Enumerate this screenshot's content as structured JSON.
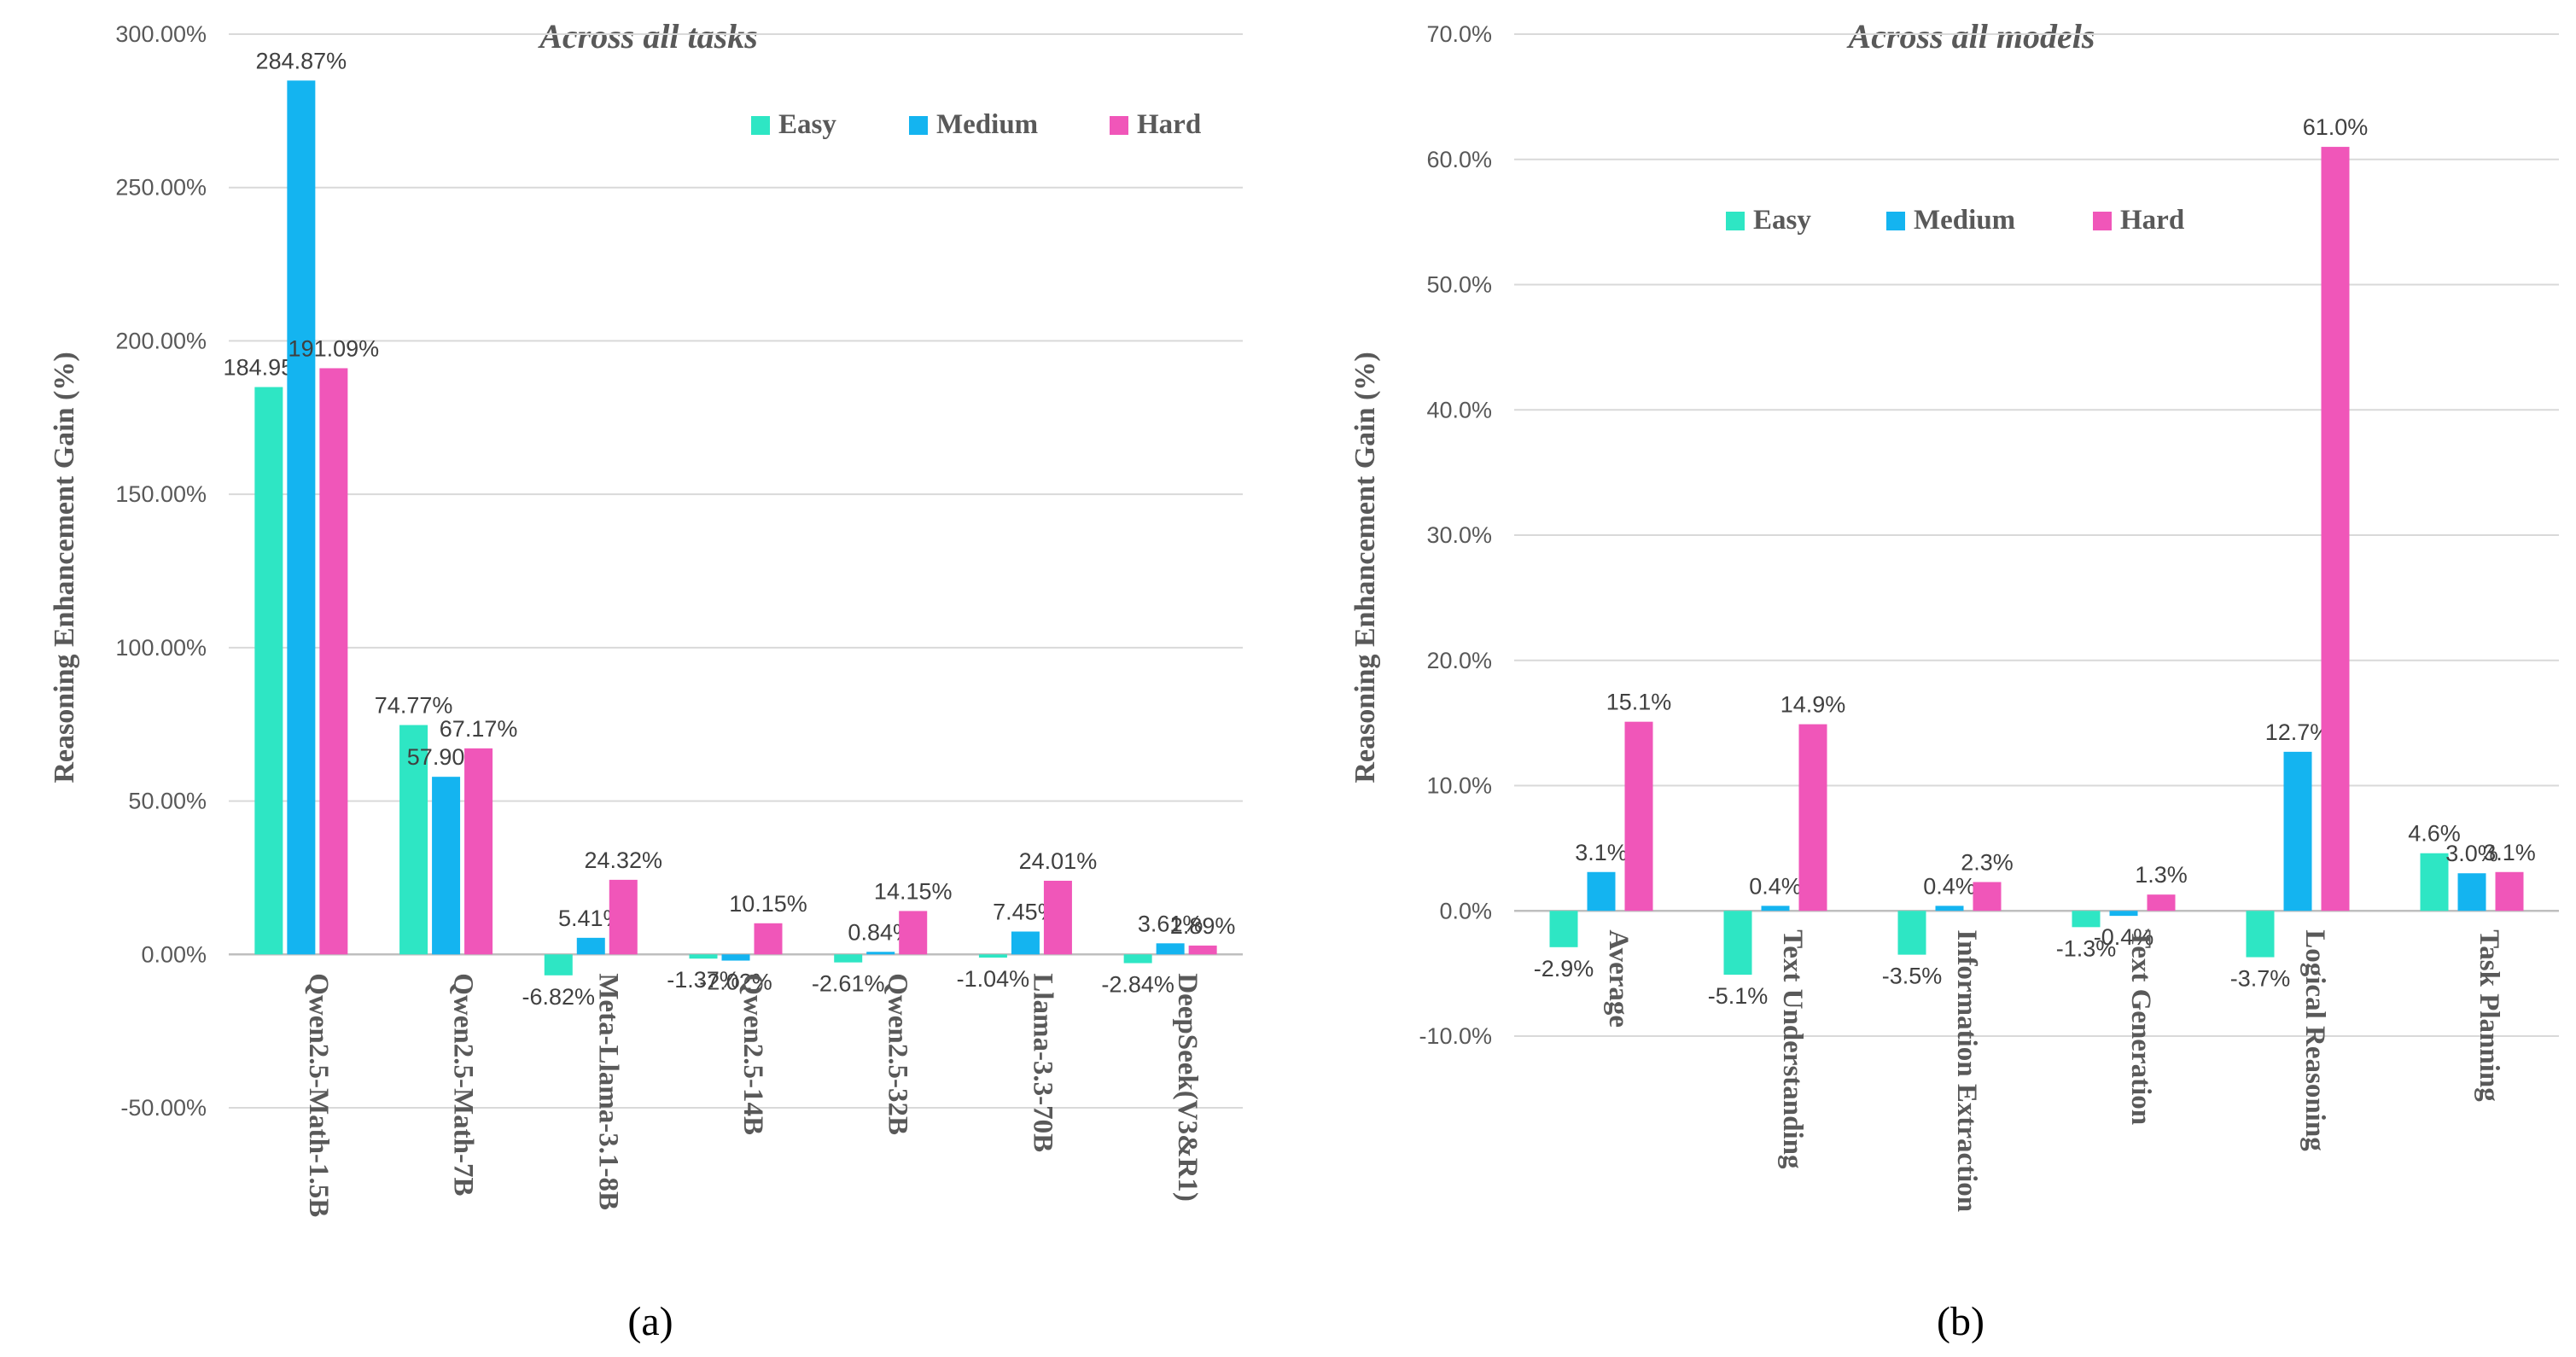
{
  "chart_data": [
    {
      "type": "bar",
      "title": "Across all tasks",
      "caption": "(a)",
      "ylabel": "Reasoning Enhancement Gain (%)",
      "xlabel": "",
      "ylim": [
        -50,
        300
      ],
      "ytick_step": 50,
      "ytick_labels": [
        "-50.00%",
        "0.00%",
        "50.00%",
        "100.00%",
        "150.00%",
        "200.00%",
        "250.00%",
        "300.00%"
      ],
      "legend_position": "top-right",
      "categories": [
        "Qwen2.5-Math-1.5B",
        "Qwen2.5-Math-7B",
        "Meta-Llama-3.1-8B",
        "Qwen2.5-14B",
        "Qwen2.5-32B",
        "Llama-3.3-70B",
        "DeepSeek(V3&R1)"
      ],
      "series": [
        {
          "name": "Easy",
          "color": "#2EE6C4",
          "values": [
            184.95,
            74.77,
            -6.82,
            -1.37,
            -2.61,
            -1.04,
            -2.84
          ],
          "labels": [
            "184.95%",
            "74.77%",
            "-6.82%",
            "-1.37%",
            "-2.61%",
            "-1.04%",
            "-2.84%"
          ]
        },
        {
          "name": "Medium",
          "color": "#14B4F0",
          "values": [
            284.87,
            57.9,
            5.41,
            -2.02,
            0.84,
            7.45,
            3.61
          ],
          "labels": [
            "284.87%",
            "57.90%",
            "5.41%",
            "-2.02%",
            "0.84%",
            "7.45%",
            "3.61%"
          ]
        },
        {
          "name": "Hard",
          "color": "#F056B9",
          "values": [
            191.09,
            67.17,
            24.32,
            10.15,
            14.15,
            24.01,
            2.89
          ],
          "labels": [
            "191.09%",
            "67.17%",
            "24.32%",
            "10.15%",
            "14.15%",
            "24.01%",
            "2.89%"
          ]
        }
      ]
    },
    {
      "type": "bar",
      "title": "Across all models",
      "caption": "(b)",
      "ylabel": "Reasoning Enhancement Gain (%)",
      "xlabel": "",
      "ylim": [
        -10,
        70
      ],
      "ytick_step": 10,
      "ytick_labels": [
        "-10.0%",
        "0.0%",
        "10.0%",
        "20.0%",
        "30.0%",
        "40.0%",
        "50.0%",
        "60.0%",
        "70.0%"
      ],
      "legend_position": "top-left",
      "categories": [
        "Average",
        "Text Understanding",
        "Information Extraction",
        "Text Generation",
        "Logical Reasoning",
        "Task Planning"
      ],
      "series": [
        {
          "name": "Easy",
          "color": "#2EE6C4",
          "values": [
            -2.9,
            -5.1,
            -3.5,
            -1.3,
            -3.7,
            4.6
          ],
          "labels": [
            "-2.9%",
            "-5.1%",
            "-3.5%",
            "-1.3%",
            "-3.7%",
            "4.6%"
          ]
        },
        {
          "name": "Medium",
          "color": "#14B4F0",
          "values": [
            3.1,
            0.4,
            0.4,
            -0.4,
            12.7,
            3.0
          ],
          "labels": [
            "3.1%",
            "0.4%",
            "0.4%",
            "-0.4%",
            "12.7%",
            "3.0%"
          ]
        },
        {
          "name": "Hard",
          "color": "#F056B9",
          "values": [
            15.1,
            14.9,
            2.3,
            1.3,
            61.0,
            3.1
          ],
          "labels": [
            "15.1%",
            "14.9%",
            "2.3%",
            "1.3%",
            "61.0%",
            "3.1%"
          ]
        }
      ]
    }
  ]
}
